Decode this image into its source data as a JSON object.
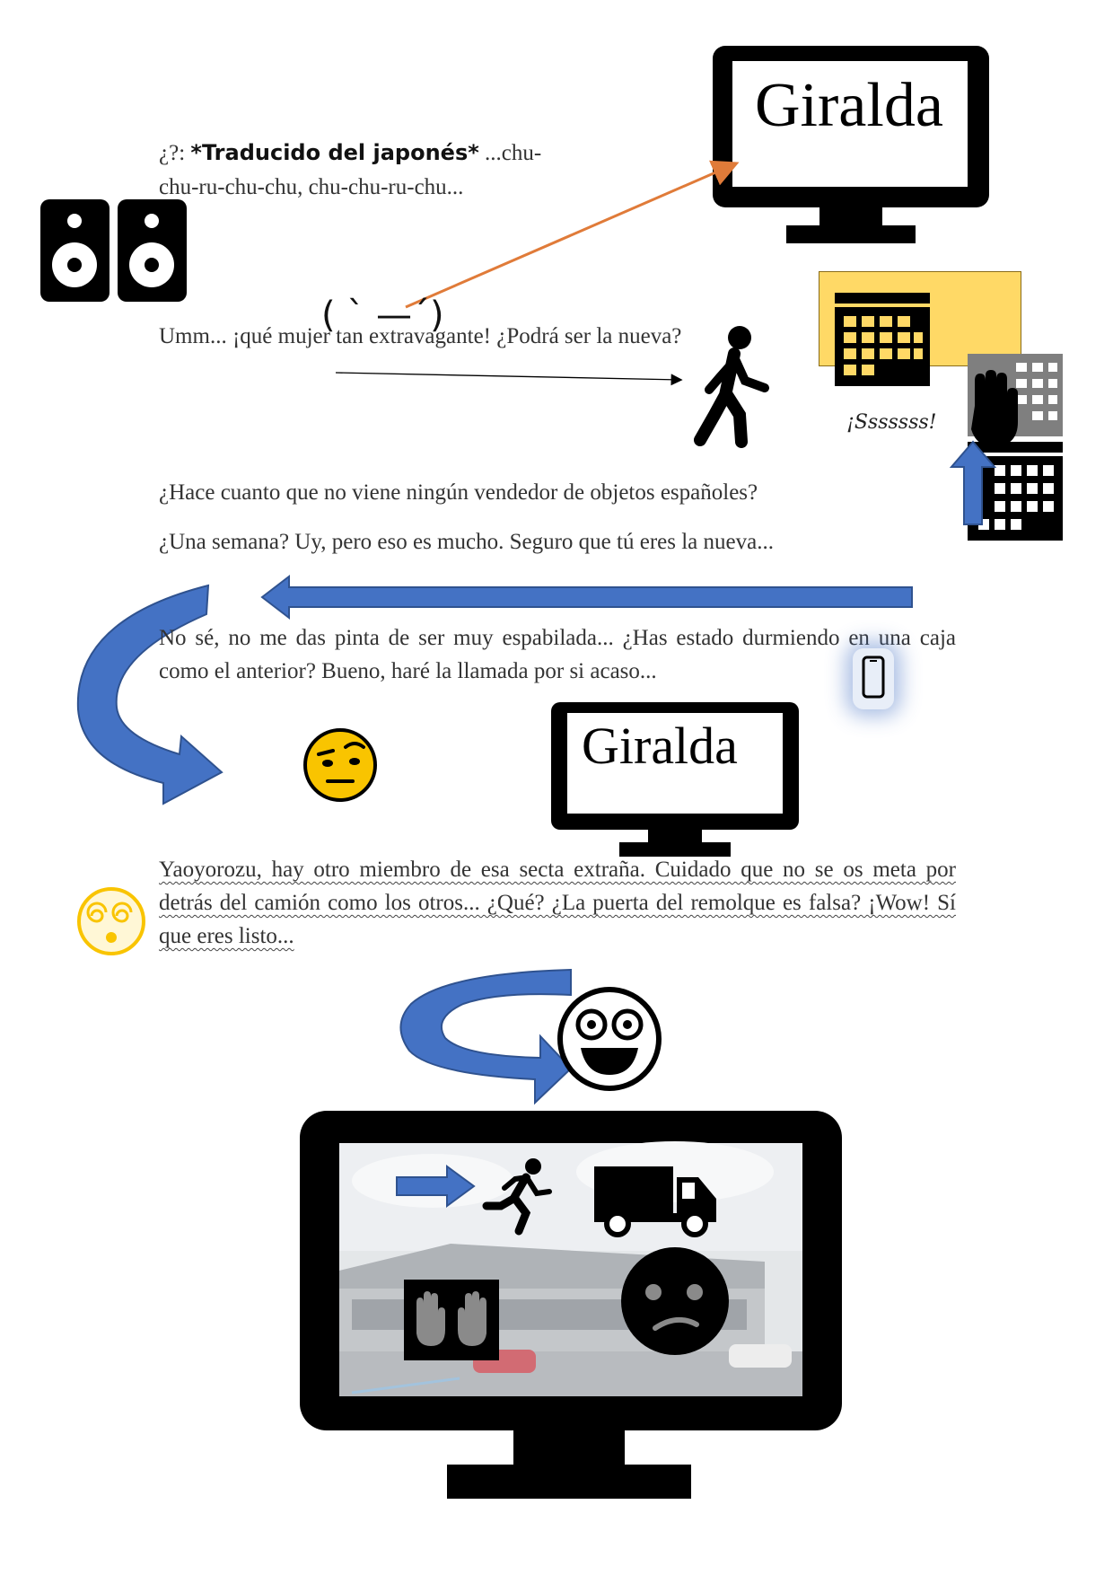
{
  "intro": {
    "speaker": "¿?:",
    "note": "*Traducido del japonés*",
    "song_start": "...chu-",
    "song_line2": "chu-ru-chu-chu,  chu-chu-ru-chu..."
  },
  "emoticon": "( ˋ —ˊ)",
  "line_umm": "Umm... ¡qué mujer tan extravagante! ¿Podrá ser la nueva?",
  "sss_label": "¡Sssssss!",
  "line_hace": "¿Hace cuanto que no viene ningún vendedor de objetos españoles?",
  "line_semana": "¿Una semana? Uy, pero eso es mucho. Seguro que tú eres la nueva...",
  "line_nose": "No sé, no me das pinta de ser muy espabilada... ¿Has estado durmiendo en una caja como el anterior? Bueno, haré la llamada por si acaso...",
  "line_yaoyorozu": "Yaoyorozu, hay otro miembro de esa secta extraña. Cuidado que no se os meta por detrás del camión como los otros... ¿Qué? ¿La puerta del remolque es falsa? ¡Wow! Sí que eres listo...",
  "monitor_top_label": "Giralda",
  "monitor_mid_label": "Giralda",
  "icons": [
    "speaker-icon",
    "walking-person-icon",
    "calendar-icon",
    "raised-hand-icon",
    "smartphone-icon",
    "raised-eyebrow-emoji-icon",
    "dizzy-face-emoji-icon",
    "grinning-face-icon",
    "running-person-icon",
    "truck-icon",
    "confused-face-icon"
  ],
  "colors": {
    "arrow_blue": "#4472c4",
    "arrow_orange": "#e07b39",
    "note_yellow": "#ffd966",
    "emoji_yellow": "#f9c400"
  }
}
